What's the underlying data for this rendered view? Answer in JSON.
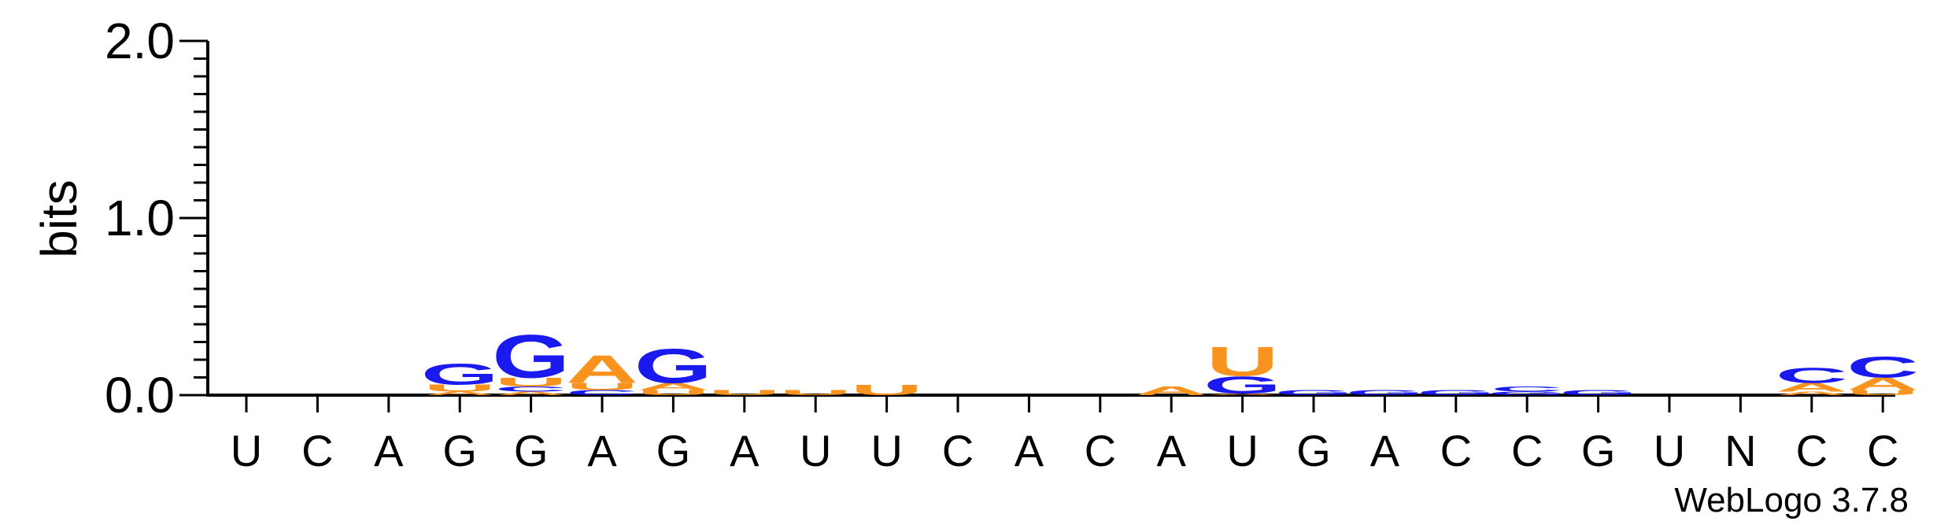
{
  "chart_data": {
    "type": "sequence-logo",
    "ylabel": "bits",
    "ylim": [
      0,
      2.0
    ],
    "yticks": [
      "0.0",
      "1.0",
      "2.0"
    ],
    "grid": false,
    "colors": {
      "A": "#f7931e",
      "U": "#f7931e",
      "G": "#1a1aee",
      "C": "#1a1aee"
    },
    "positions": [
      {
        "label": "U",
        "stack": []
      },
      {
        "label": "C",
        "stack": []
      },
      {
        "label": "A",
        "stack": []
      },
      {
        "label": "G",
        "stack": [
          {
            "letter": "A",
            "bits": 0.02
          },
          {
            "letter": "U",
            "bits": 0.04
          },
          {
            "letter": "G",
            "bits": 0.12
          }
        ]
      },
      {
        "label": "G",
        "stack": [
          {
            "letter": "A",
            "bits": 0.02
          },
          {
            "letter": "C",
            "bits": 0.03
          },
          {
            "letter": "U",
            "bits": 0.05
          },
          {
            "letter": "G",
            "bits": 0.25
          }
        ]
      },
      {
        "label": "A",
        "stack": [
          {
            "letter": "C",
            "bits": 0.03
          },
          {
            "letter": "U",
            "bits": 0.04
          },
          {
            "letter": "A",
            "bits": 0.16
          }
        ]
      },
      {
        "label": "G",
        "stack": [
          {
            "letter": "U",
            "bits": 0.03
          },
          {
            "letter": "A",
            "bits": 0.04
          },
          {
            "letter": "G",
            "bits": 0.2
          }
        ]
      },
      {
        "label": "A",
        "stack": [
          {
            "letter": "U",
            "bits": 0.03
          }
        ]
      },
      {
        "label": "U",
        "stack": [
          {
            "letter": "U",
            "bits": 0.03
          }
        ]
      },
      {
        "label": "U",
        "stack": [
          {
            "letter": "U",
            "bits": 0.06
          }
        ]
      },
      {
        "label": "C",
        "stack": []
      },
      {
        "label": "A",
        "stack": []
      },
      {
        "label": "C",
        "stack": []
      },
      {
        "label": "A",
        "stack": [
          {
            "letter": "A",
            "bits": 0.05
          }
        ]
      },
      {
        "label": "U",
        "stack": [
          {
            "letter": "A",
            "bits": 0.01
          },
          {
            "letter": "G",
            "bits": 0.1
          },
          {
            "letter": "U",
            "bits": 0.17
          }
        ]
      },
      {
        "label": "G",
        "stack": [
          {
            "letter": "G",
            "bits": 0.03
          }
        ]
      },
      {
        "label": "A",
        "stack": [
          {
            "letter": "G",
            "bits": 0.03
          }
        ]
      },
      {
        "label": "C",
        "stack": [
          {
            "letter": "G",
            "bits": 0.03
          }
        ]
      },
      {
        "label": "C",
        "stack": [
          {
            "letter": "G",
            "bits": 0.02
          },
          {
            "letter": "C",
            "bits": 0.03
          }
        ]
      },
      {
        "label": "G",
        "stack": [
          {
            "letter": "G",
            "bits": 0.03
          }
        ]
      },
      {
        "label": "U",
        "stack": []
      },
      {
        "label": "N",
        "stack": []
      },
      {
        "label": "C",
        "stack": [
          {
            "letter": "A",
            "bits": 0.02
          },
          {
            "letter": "A",
            "bits": 0.05
          },
          {
            "letter": "C",
            "bits": 0.09
          }
        ]
      },
      {
        "label": "C",
        "stack": [
          {
            "letter": "U",
            "bits": 0.03
          },
          {
            "letter": "A",
            "bits": 0.07
          },
          {
            "letter": "C",
            "bits": 0.12
          }
        ]
      }
    ]
  },
  "footer": {
    "credit": "WebLogo 3.7.8"
  }
}
